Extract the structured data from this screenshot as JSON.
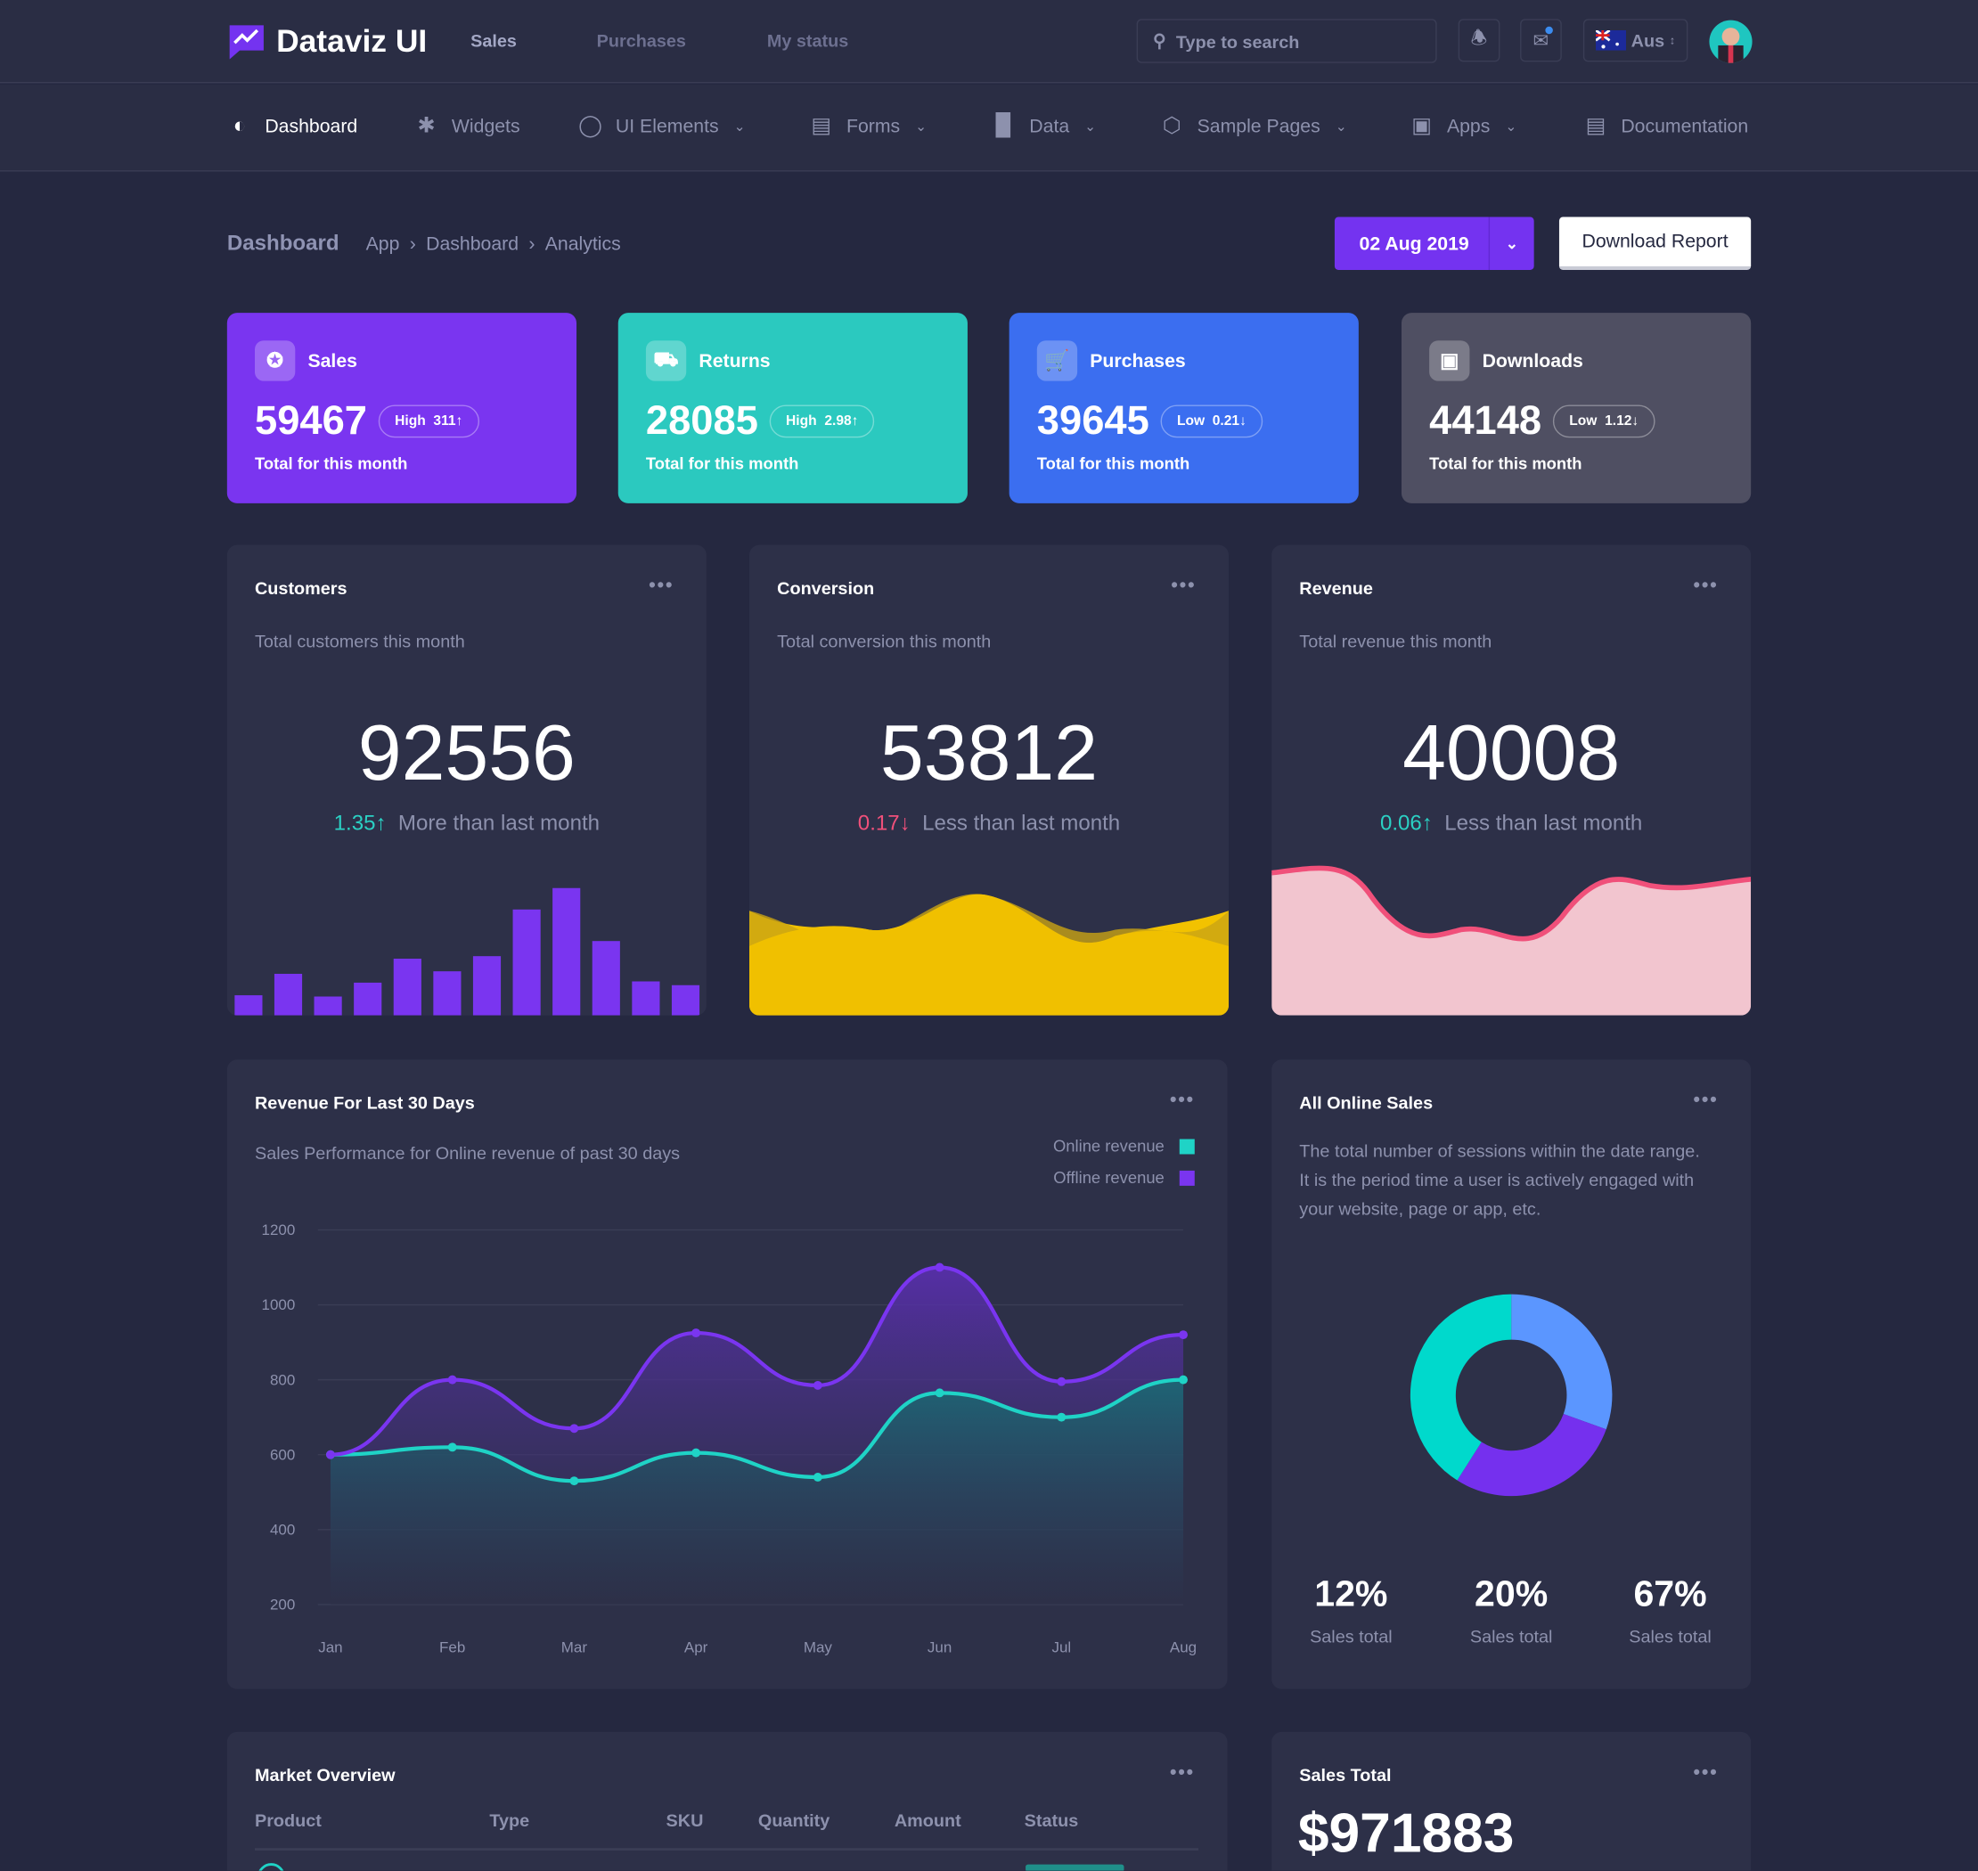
{
  "header": {
    "app_name": "Dataviz UI",
    "top_links": [
      "Sales",
      "Purchases",
      "My status"
    ],
    "search_placeholder": "Type to search",
    "region": "Aus"
  },
  "nav": [
    {
      "label": "Dashboard",
      "icon": "shield-icon",
      "active": true,
      "dropdown": false
    },
    {
      "label": "Widgets",
      "icon": "puzzle-icon",
      "dropdown": false
    },
    {
      "label": "UI Elements",
      "icon": "circle-icon",
      "dropdown": true
    },
    {
      "label": "Forms",
      "icon": "form-icon",
      "dropdown": true
    },
    {
      "label": "Data",
      "icon": "bar-chart-icon",
      "dropdown": true
    },
    {
      "label": "Sample Pages",
      "icon": "codepen-icon",
      "dropdown": true
    },
    {
      "label": "Apps",
      "icon": "image-icon",
      "dropdown": true
    },
    {
      "label": "Documentation",
      "icon": "document-icon",
      "dropdown": false
    }
  ],
  "page": {
    "title": "Dashboard",
    "breadcrumb": [
      "App",
      "Dashboard",
      "Analytics"
    ],
    "date": "02 Aug 2019",
    "download_label": "Download Report"
  },
  "stats": [
    {
      "label": "Sales",
      "value": "59467",
      "level": "High",
      "change": "311",
      "dir": "↑",
      "sub": "Total for this month",
      "color": "#7a35f0"
    },
    {
      "label": "Returns",
      "value": "28085",
      "level": "High",
      "change": "2.98",
      "dir": "↑",
      "sub": "Total for this month",
      "color": "#2bc9bf"
    },
    {
      "label": "Purchases",
      "value": "39645",
      "level": "Low",
      "change": "0.21",
      "dir": "↓",
      "sub": "Total for this month",
      "color": "#3b6ef0"
    },
    {
      "label": "Downloads",
      "value": "44148",
      "level": "Low",
      "change": "1.12",
      "dir": "↓",
      "sub": "Total for this month",
      "color": "#4f4f62"
    }
  ],
  "metrics": [
    {
      "title": "Customers",
      "desc": "Total customers this month",
      "value": "92556",
      "delta": "1.35",
      "dir": "↑",
      "note": "More than last month",
      "delta_color": "#2bd1c4"
    },
    {
      "title": "Conversion",
      "desc": "Total conversion this month",
      "value": "53812",
      "delta": "0.17",
      "dir": "↓",
      "note": "Less than last month",
      "delta_color": "#f0507a"
    },
    {
      "title": "Revenue",
      "desc": "Total revenue this month",
      "value": "40008",
      "delta": "0.06",
      "dir": "↑",
      "note": "Less than last month",
      "delta_color": "#2bd1c4"
    }
  ],
  "customers_bars": [
    16,
    33,
    15,
    26,
    45,
    35,
    47,
    84,
    101,
    59,
    27,
    24
  ],
  "revenue30": {
    "title": "Revenue For Last 30 Days",
    "desc": "Sales Performance for Online revenue of past 30 days"
  },
  "chart_data": {
    "type": "area",
    "categories": [
      "Jan",
      "Feb",
      "Mar",
      "Apr",
      "May",
      "Jun",
      "Jul",
      "Aug"
    ],
    "yticks": [
      "1200",
      "1000",
      "800",
      "600",
      "400",
      "200"
    ],
    "ylim": [
      200,
      1200
    ],
    "grid": true,
    "legend": "top-right",
    "series": [
      {
        "name": "Online revenue",
        "color": "#1fd3c6",
        "values": [
          600,
          620,
          530,
          605,
          540,
          765,
          700,
          800
        ]
      },
      {
        "name": "Offline revenue",
        "color": "#7a35f0",
        "values": [
          600,
          800,
          670,
          925,
          785,
          1100,
          795,
          920
        ]
      }
    ]
  },
  "online_sales": {
    "title": "All Online Sales",
    "desc": "The total number of sessions within the date range. It is the period time a user is actively engaged with your website, page or app, etc.",
    "donut": [
      {
        "color": "#5b96ff",
        "fraction": 0.305
      },
      {
        "color": "#7530ee",
        "fraction": 0.285
      },
      {
        "color": "#00d9cc",
        "fraction": 0.41
      }
    ],
    "stats": [
      {
        "value": "12%",
        "label": "Sales total"
      },
      {
        "value": "20%",
        "label": "Sales total"
      },
      {
        "value": "67%",
        "label": "Sales total"
      }
    ]
  },
  "market": {
    "title": "Market Overview",
    "columns": [
      "Product",
      "Type",
      "SKU",
      "Quantity",
      "Amount",
      "Status"
    ]
  },
  "sales_total": {
    "title": "Sales Total",
    "value": "$971883"
  }
}
